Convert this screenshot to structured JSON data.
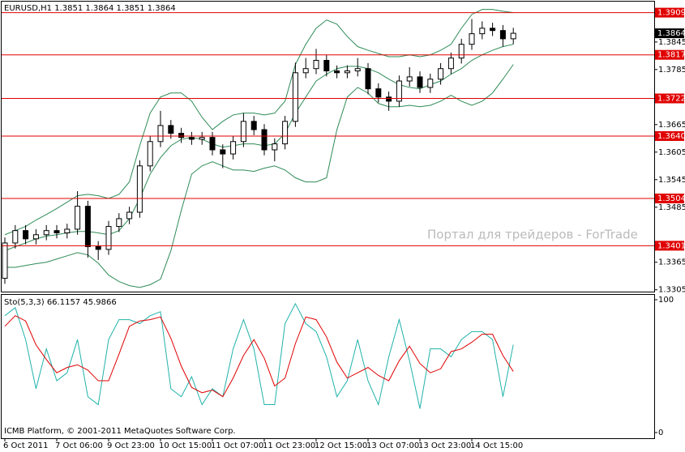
{
  "chart_data": [
    {
      "type": "candlestick",
      "title": "EURUSD,H1  1.3851 1.3864 1.3851 1.3864",
      "annotations": [
        "Портал для трейдеров - ForTrade"
      ],
      "ylim": [
        1.3301,
        1.3933
      ],
      "yticks": [
        1.3305,
        1.3365,
        1.3485,
        1.3545,
        1.3605,
        1.3665,
        1.3785,
        1.3845
      ],
      "levels": [
        {
          "value": 1.3909,
          "label": "1.3909"
        },
        {
          "value": 1.3817,
          "label": "1.3817"
        },
        {
          "value": 1.3722,
          "label": "1.3722"
        },
        {
          "value": 1.364,
          "label": "1.3640"
        },
        {
          "value": 1.3504,
          "label": "1.3504"
        },
        {
          "value": 1.3401,
          "label": "1.3401"
        }
      ],
      "level_color": "#e00000",
      "current_price": {
        "value": 1.3864,
        "label": "1.3864"
      },
      "open": [
        1.333,
        1.3407,
        1.3434,
        1.3416,
        1.3425,
        1.3434,
        1.3429,
        1.3437,
        1.3487,
        1.3399,
        1.3393,
        1.3443,
        1.346,
        1.3474,
        1.3575,
        1.3628,
        1.3663,
        1.3646,
        1.3637,
        1.3633,
        1.3637,
        1.361,
        1.3601,
        1.3628,
        1.3672,
        1.3654,
        1.361,
        1.3623,
        1.3672,
        1.3778,
        1.3787,
        1.3805,
        1.3782,
        1.3778,
        1.3782,
        1.3787,
        1.3743,
        1.3725,
        1.3716,
        1.376,
        1.3769,
        1.3746,
        1.3764,
        1.3787,
        1.381,
        1.384,
        1.3863,
        1.3875,
        1.387,
        1.3852
      ],
      "high": [
        1.3419,
        1.3446,
        1.3446,
        1.3437,
        1.3446,
        1.3446,
        1.3449,
        1.352,
        1.3499,
        1.3411,
        1.3455,
        1.3472,
        1.3486,
        1.3587,
        1.364,
        1.3695,
        1.3675,
        1.3658,
        1.3649,
        1.3649,
        1.3649,
        1.3622,
        1.364,
        1.369,
        1.3684,
        1.3666,
        1.3635,
        1.3684,
        1.38,
        1.381,
        1.383,
        1.3817,
        1.3794,
        1.3794,
        1.381,
        1.3799,
        1.3755,
        1.3737,
        1.3772,
        1.379,
        1.3781,
        1.3776,
        1.3799,
        1.3822,
        1.3852,
        1.3895,
        1.389,
        1.3887,
        1.3882,
        1.3876
      ],
      "low": [
        1.3318,
        1.3395,
        1.3404,
        1.3404,
        1.3413,
        1.3417,
        1.3417,
        1.3425,
        1.3375,
        1.337,
        1.3381,
        1.3431,
        1.3448,
        1.3462,
        1.3563,
        1.3616,
        1.3634,
        1.3625,
        1.3621,
        1.3621,
        1.3598,
        1.357,
        1.3589,
        1.3616,
        1.3642,
        1.3598,
        1.3585,
        1.3611,
        1.366,
        1.3766,
        1.3775,
        1.377,
        1.3766,
        1.3766,
        1.377,
        1.3731,
        1.3713,
        1.3695,
        1.3704,
        1.3748,
        1.3734,
        1.3734,
        1.3752,
        1.3775,
        1.3798,
        1.3828,
        1.3851,
        1.3858,
        1.3835,
        1.384
      ],
      "close": [
        1.3407,
        1.3434,
        1.3416,
        1.3425,
        1.3434,
        1.3429,
        1.3437,
        1.3487,
        1.3399,
        1.3393,
        1.3443,
        1.346,
        1.3474,
        1.3575,
        1.3628,
        1.3663,
        1.3646,
        1.3637,
        1.3633,
        1.3637,
        1.361,
        1.3601,
        1.3628,
        1.3672,
        1.3654,
        1.361,
        1.3623,
        1.3672,
        1.3778,
        1.3787,
        1.3805,
        1.3782,
        1.3778,
        1.3782,
        1.3787,
        1.3743,
        1.3725,
        1.3716,
        1.376,
        1.3769,
        1.3746,
        1.3764,
        1.3787,
        1.381,
        1.384,
        1.3863,
        1.3875,
        1.387,
        1.3852,
        1.3864
      ],
      "bands": [
        {
          "color": "#2e8b57",
          "values": [
            1.3425,
            1.3434,
            1.3443,
            1.3457,
            1.3469,
            1.3482,
            1.3496,
            1.351,
            1.3513,
            1.351,
            1.3504,
            1.3513,
            1.354,
            1.3619,
            1.369,
            1.3725,
            1.3734,
            1.3734,
            1.3716,
            1.3681,
            1.3654,
            1.3672,
            1.3686,
            1.369,
            1.369,
            1.3686,
            1.369,
            1.3716,
            1.3796,
            1.384,
            1.3875,
            1.3893,
            1.3884,
            1.3857,
            1.3835,
            1.3827,
            1.382,
            1.3813,
            1.3813,
            1.3817,
            1.3813,
            1.3817,
            1.3827,
            1.384,
            1.3875,
            1.3905,
            1.3916,
            1.3916,
            1.3912,
            1.3909
          ]
        },
        {
          "color": "#2e8b57",
          "values": [
            1.339,
            1.3399,
            1.3407,
            1.3416,
            1.3422,
            1.3425,
            1.3429,
            1.3432,
            1.3432,
            1.3429,
            1.3425,
            1.3434,
            1.346,
            1.3504,
            1.3557,
            1.3593,
            1.3619,
            1.3633,
            1.3637,
            1.3633,
            1.3623,
            1.3616,
            1.3619,
            1.3623,
            1.3623,
            1.3619,
            1.3623,
            1.3646,
            1.369,
            1.3725,
            1.376,
            1.3775,
            1.3787,
            1.3792,
            1.3792,
            1.3787,
            1.3778,
            1.3764,
            1.3752,
            1.3746,
            1.3743,
            1.3752,
            1.376,
            1.3775,
            1.3787,
            1.3805,
            1.3817,
            1.3827,
            1.3835,
            1.384
          ]
        },
        {
          "color": "#2e8b57",
          "values": [
            1.3354,
            1.3354,
            1.3358,
            1.3362,
            1.3365,
            1.3372,
            1.3379,
            1.3386,
            1.3381,
            1.3363,
            1.3337,
            1.3323,
            1.3314,
            1.331,
            1.3316,
            1.3328,
            1.339,
            1.3478,
            1.3557,
            1.3575,
            1.3584,
            1.3575,
            1.3566,
            1.3566,
            1.3563,
            1.357,
            1.3575,
            1.3566,
            1.3549,
            1.354,
            1.354,
            1.3549,
            1.3654,
            1.3725,
            1.3746,
            1.3734,
            1.3711,
            1.3704,
            1.3704,
            1.3707,
            1.3704,
            1.3707,
            1.3716,
            1.3729,
            1.3716,
            1.3707,
            1.3716,
            1.3734,
            1.3764,
            1.3796
          ]
        }
      ]
    },
    {
      "type": "line",
      "title": "Sto(5,3,3) 66.1157 45.9866",
      "annotations": [
        "ICMB Platform, © 2001-2011 MetaQuotes Software Corp."
      ],
      "ylim": [
        0,
        100
      ],
      "yticks": [
        0,
        100
      ],
      "xticks": [
        {
          "value": 0,
          "label": "6 Oct 2011"
        },
        {
          "value": 5,
          "label": "7 Oct 06:00"
        },
        {
          "value": 10,
          "label": "9 Oct 23:00"
        },
        {
          "value": 15,
          "label": "10 Oct 15:00"
        },
        {
          "value": 20,
          "label": "11 Oct 07:00"
        },
        {
          "value": 25,
          "label": "11 Oct 23:00"
        },
        {
          "value": 30,
          "label": "12 Oct 15:00"
        },
        {
          "value": 35,
          "label": "13 Oct 07:00"
        },
        {
          "value": 40,
          "label": "13 Oct 23:00"
        },
        {
          "value": 45,
          "label": "14 Oct 15:00"
        }
      ],
      "series": [
        {
          "color": "#20b2aa",
          "values": [
            88,
            94,
            70,
            33,
            63,
            39,
            45,
            70,
            27,
            21,
            70,
            85,
            85,
            82,
            88,
            91,
            33,
            27,
            42,
            21,
            33,
            27,
            63,
            85,
            63,
            21,
            21,
            82,
            97,
            82,
            76,
            57,
            27,
            39,
            70,
            39,
            21,
            57,
            85,
            54,
            18,
            63,
            63,
            57,
            70,
            76,
            76,
            70,
            27,
            66.1157
          ]
        },
        {
          "color": "#e00000",
          "values": [
            80,
            88,
            84,
            66,
            55,
            45,
            49,
            51,
            47,
            39,
            39,
            59,
            80,
            84,
            85,
            87,
            71,
            50,
            34,
            30,
            32,
            27,
            41,
            58,
            70,
            56,
            35,
            41,
            67,
            87,
            85,
            72,
            53,
            41,
            45,
            49,
            43,
            39,
            54,
            65,
            52,
            45,
            48,
            61,
            63,
            68,
            74,
            74,
            58,
            45.9866
          ]
        }
      ]
    }
  ]
}
